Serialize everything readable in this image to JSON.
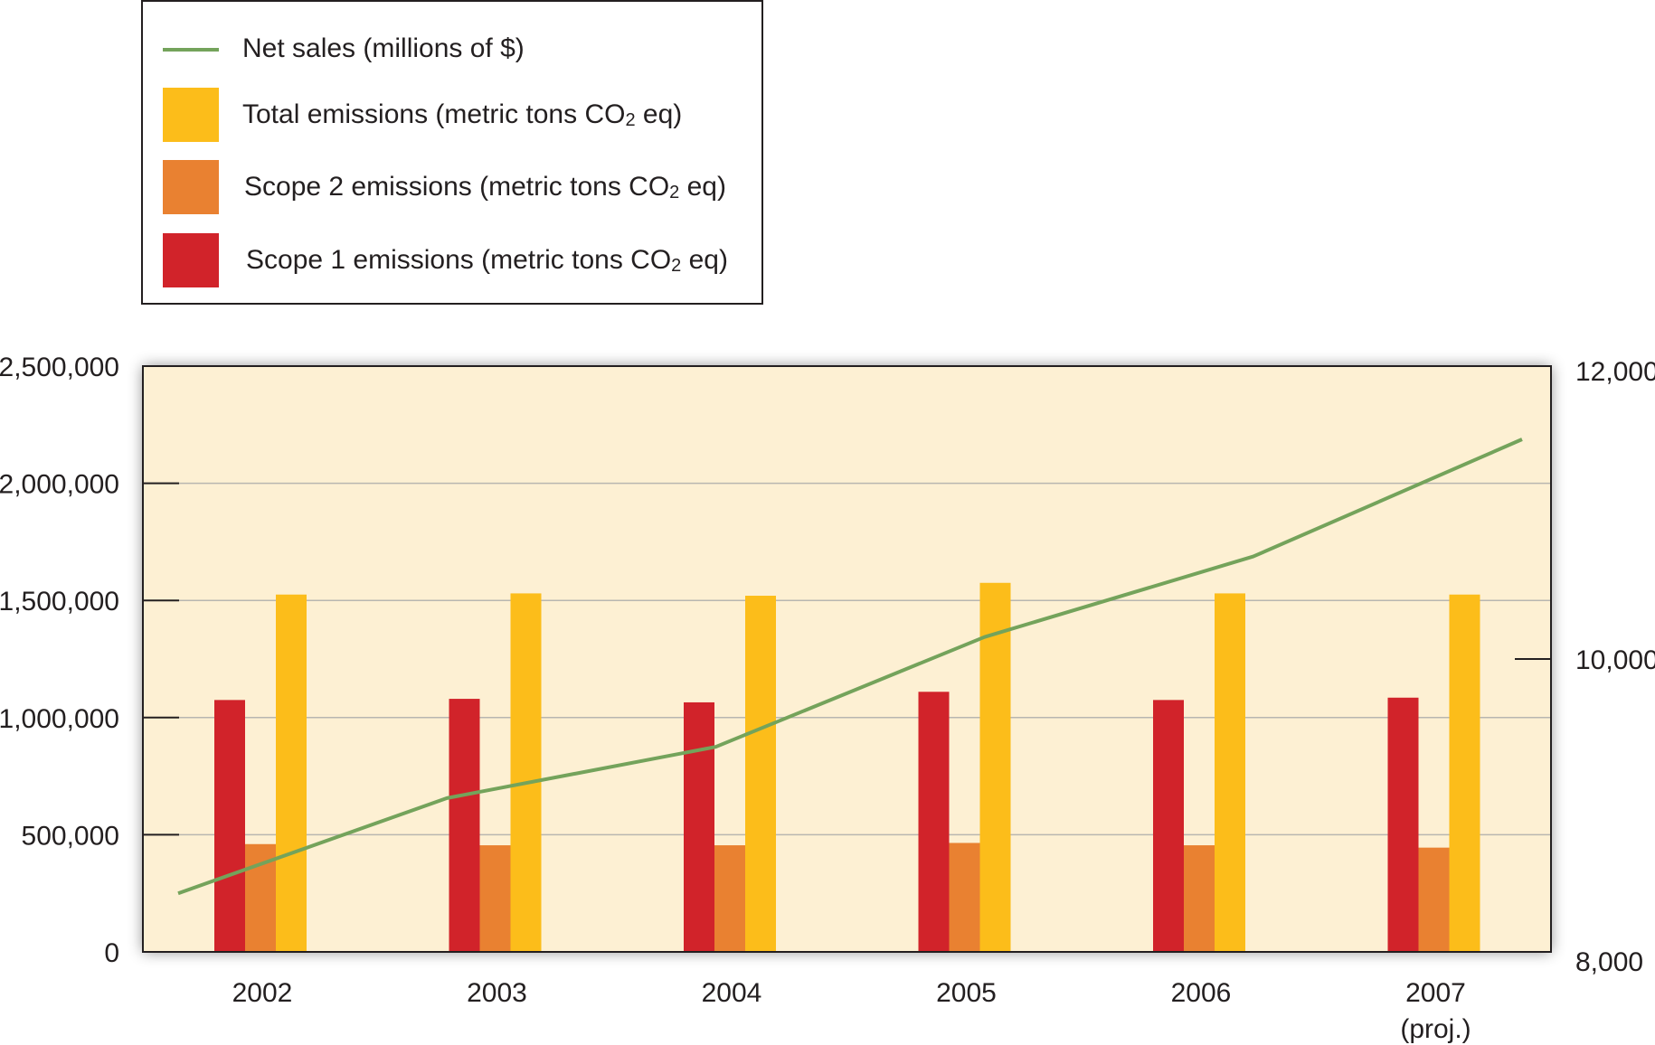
{
  "colors": {
    "plot_bg": "#fdf0d3",
    "grid": "#b8b6b0",
    "axis": "#231f20",
    "net_sales": "#74a35b",
    "total": "#fcbd1a",
    "scope2": "#e98131",
    "scope1": "#d1232a"
  },
  "legend": {
    "items": [
      {
        "key": "net_sales",
        "label": "Net sales (millions of $)",
        "kind": "line",
        "color": "#74a35b"
      },
      {
        "key": "total",
        "label": "Total emissions (metric tons CO",
        "sub": "2",
        "suffix": " eq)",
        "kind": "swatch",
        "color": "#fcbd1a"
      },
      {
        "key": "scope2",
        "label": "Scope 2 emissions (metric tons CO",
        "sub": "2",
        "suffix": " eq)",
        "kind": "swatch",
        "color": "#e98131"
      },
      {
        "key": "scope1",
        "label": "Scope 1 emissions (metric tons CO",
        "sub": "2",
        "suffix": " eq)",
        "kind": "swatch",
        "color": "#d1232a"
      }
    ]
  },
  "chart_data": {
    "type": "bar",
    "categories": [
      "2002",
      "2003",
      "2004",
      "2005",
      "2006",
      "2007"
    ],
    "category_sublabels": [
      "",
      "",
      "",
      "",
      "",
      "(proj.)"
    ],
    "series": [
      {
        "name": "Scope 1 emissions (metric tons CO2 eq)",
        "key": "scope1",
        "type": "bar",
        "axis": "left",
        "values": [
          1075000,
          1080000,
          1065000,
          1110000,
          1075000,
          1085000
        ]
      },
      {
        "name": "Scope 2 emissions (metric tons CO2 eq)",
        "key": "scope2",
        "type": "bar",
        "axis": "left",
        "values": [
          460000,
          455000,
          455000,
          465000,
          455000,
          445000
        ]
      },
      {
        "name": "Total emissions (metric tons CO2 eq)",
        "key": "total",
        "type": "bar",
        "axis": "left",
        "values": [
          1525000,
          1530000,
          1520000,
          1575000,
          1530000,
          1525000
        ]
      },
      {
        "name": "Net sales (millions of $)",
        "key": "net_sales",
        "type": "line",
        "axis": "right",
        "values": [
          8400,
          9050,
          9400,
          10150,
          10700,
          11500
        ]
      }
    ],
    "y_left": {
      "min": 0,
      "max": 2500000,
      "ticks": [
        0,
        500000,
        1000000,
        1500000,
        2000000,
        2500000
      ],
      "tick_labels": [
        "0",
        "500,000",
        "1,000,000",
        "1,500,000",
        "2,000,000",
        "2,500,000"
      ]
    },
    "y_right": {
      "min": 8000,
      "max": 12000,
      "ticks": [
        8000,
        10000,
        12000
      ],
      "tick_labels": [
        "8,000",
        "10,000",
        "12,000"
      ]
    },
    "grid": true,
    "legend_position": "top-left"
  }
}
